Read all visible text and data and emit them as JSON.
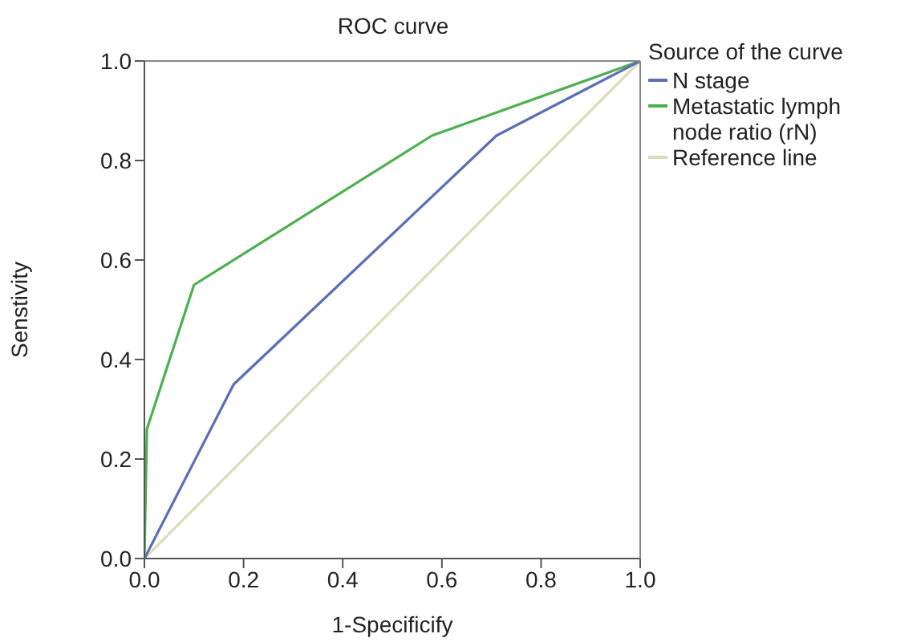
{
  "chart_data": {
    "type": "line",
    "title": "ROC curve",
    "xlabel": "1-Specificify",
    "ylabel": "Senstivity",
    "legend_title": "Source of the curve",
    "legend": "top right",
    "marker": "none",
    "xlim": [
      0,
      1
    ],
    "ylim": [
      0,
      1
    ],
    "xticks": [
      {
        "value": 0,
        "label": "0.0"
      },
      {
        "value": 0.2,
        "label": "0.2"
      },
      {
        "value": 0.4,
        "label": "0.4"
      },
      {
        "value": 0.6,
        "label": "0.6"
      },
      {
        "value": 0.8,
        "label": "0.8"
      },
      {
        "value": 1,
        "label": "1.0"
      }
    ],
    "yticks": [
      {
        "value": 0,
        "label": "0.0"
      },
      {
        "value": 0.2,
        "label": "0.2"
      },
      {
        "value": 0.4,
        "label": "0.4"
      },
      {
        "value": 0.6,
        "label": "0.6"
      },
      {
        "value": 0.8,
        "label": "0.8"
      },
      {
        "value": 1,
        "label": "1.0"
      }
    ],
    "series": [
      {
        "name": "N stage",
        "color": "#5b6fb5",
        "x": [
          0,
          0.18,
          0.71,
          1
        ],
        "values": [
          0,
          0.35,
          0.85,
          1
        ]
      },
      {
        "name": "Metastatic lymph node ratio (rN)",
        "color": "#4cb050",
        "x": [
          0,
          0.005,
          0.1,
          0.58,
          1
        ],
        "values": [
          0,
          0.26,
          0.55,
          0.85,
          1
        ]
      },
      {
        "name": "Reference line",
        "color": "#dcdcb8",
        "x": [
          0,
          1
        ],
        "values": [
          0,
          1
        ]
      }
    ]
  }
}
